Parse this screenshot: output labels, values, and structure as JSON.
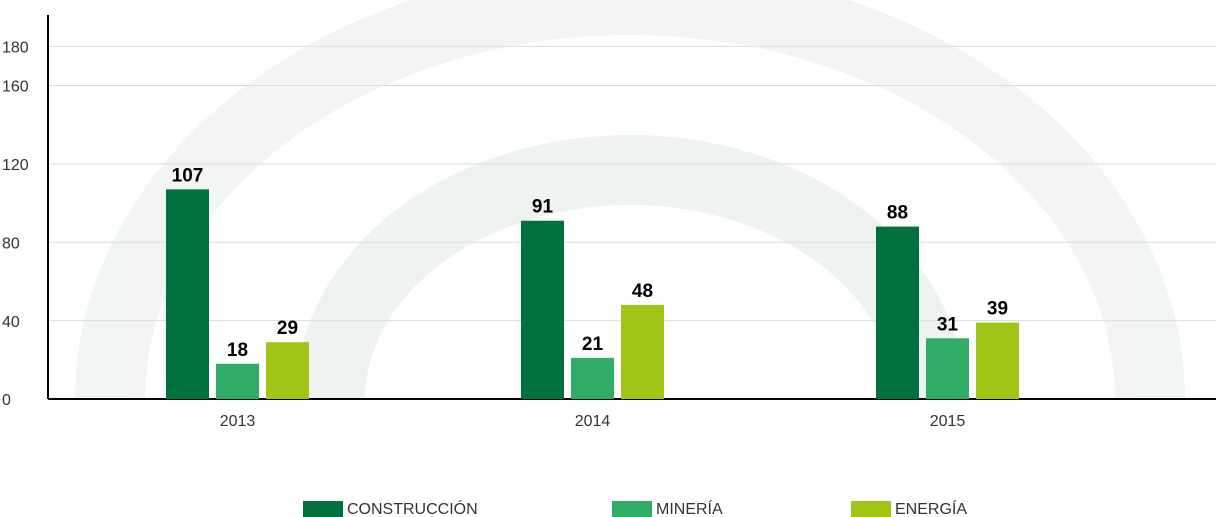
{
  "chart_data": {
    "type": "bar",
    "categories": [
      "2013",
      "2014",
      "2015"
    ],
    "series": [
      {
        "name": "CONSTRUCCIÓN",
        "color": "#00703c",
        "values": [
          107,
          91,
          88
        ]
      },
      {
        "name": "MINERÍA",
        "color": "#2fac66",
        "values": [
          18,
          21,
          31
        ]
      },
      {
        "name": "ENERGÍA",
        "color": "#a0c516",
        "values": [
          29,
          48,
          39
        ]
      }
    ],
    "ylim": [
      0,
      196
    ],
    "yticks": [
      0,
      40,
      80,
      120,
      160,
      180
    ],
    "grid": true,
    "legend": "bottom"
  }
}
